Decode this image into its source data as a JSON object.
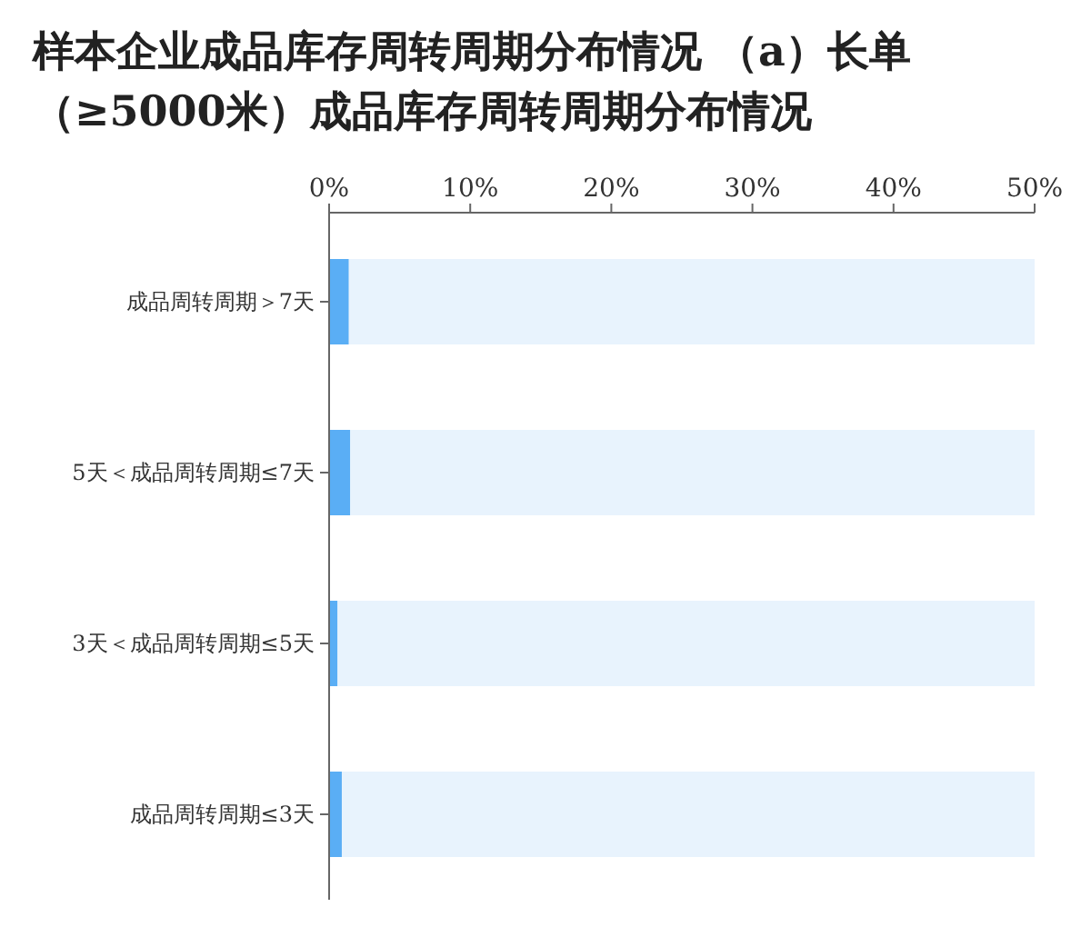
{
  "chart_data": {
    "type": "bar",
    "orientation": "horizontal",
    "stacked": true,
    "title": "样本企业成品库存周转周期分布情况 （a）长单（≥5000米）成品库存周转周期分布情况",
    "categories": [
      "成品周转周期＞7天",
      "5天＜成品周转周期≤7天",
      "3天＜成品周转周期≤5天",
      "成品周转周期≤3天"
    ],
    "series": [
      {
        "color": "#5aaef5",
        "values": [
          1.4,
          1.5,
          0.6,
          0.9
        ]
      },
      {
        "color": "#e8f3fd",
        "values": [
          48.6,
          48.5,
          49.4,
          49.1
        ]
      }
    ],
    "xlim": [
      0,
      50
    ],
    "xticks": [
      {
        "value": 0,
        "label": "0%"
      },
      {
        "value": 10,
        "label": "10%"
      },
      {
        "value": 20,
        "label": "20%"
      },
      {
        "value": 30,
        "label": "30%"
      },
      {
        "value": 40,
        "label": "40%"
      },
      {
        "value": 50,
        "label": "50%"
      }
    ],
    "grid": false
  }
}
